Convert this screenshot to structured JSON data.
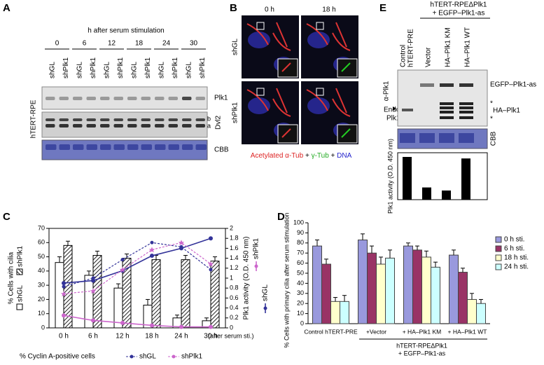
{
  "panels": {
    "A": {
      "letter": "A",
      "header": "h after serum stimulation",
      "times": [
        "0",
        "6",
        "12",
        "18",
        "24",
        "30"
      ],
      "lanes": [
        "shGL",
        "shPlk1"
      ],
      "cell_line": "hTERT-RPE",
      "rows": [
        "Plk1",
        "b",
        "a",
        "Dvl2",
        "CBB"
      ]
    },
    "B": {
      "letter": "B",
      "columns": [
        "0 h",
        "18 h"
      ],
      "rows": [
        "shGL",
        "shPlk1"
      ],
      "caption": [
        "Acetylated α-Tub",
        "+",
        "γ-Tub",
        "+",
        "DNA"
      ]
    },
    "E": {
      "letter": "E",
      "header": [
        "hTERT-RPEΔPlk1",
        "+ EGFP–Plk1-as"
      ],
      "lanes": [
        [
          "Control",
          "hTERT-PRE"
        ],
        [
          "Vector"
        ],
        [
          "HA–Plk1 KM"
        ],
        [
          "HA–Plk1 WT"
        ]
      ],
      "antibody": "α-Plk1",
      "bands": [
        "EGFP–Plk1-as",
        "*",
        "HA–Plk1",
        "*"
      ],
      "endo": [
        "Endo.",
        "Plk1"
      ],
      "stain": "CBB"
    }
  },
  "chart_data": [
    {
      "type": "bar",
      "letter": "C",
      "categories": [
        "0 h",
        "6 h",
        "12 h",
        "18 h",
        "24 h",
        "30 h"
      ],
      "x_note": "(after serum sti.)",
      "ylabel": "% Cells with cilia",
      "y2label": "Plk1 activity (O.D. 450 nm)",
      "xlabel": "% Cyclin A-positive cells",
      "ylim": [
        0,
        70
      ],
      "yticks": [
        0,
        10,
        20,
        30,
        40,
        50,
        60,
        70
      ],
      "y2lim": [
        0,
        2
      ],
      "y2ticks": [
        0,
        0.2,
        0.4,
        0.6,
        0.8,
        1,
        1.2,
        1.4,
        1.6,
        1.8,
        2
      ],
      "series": [
        {
          "name": "shGL",
          "type": "bar",
          "color": "#ffffff",
          "values": [
            46,
            37,
            28,
            16,
            7,
            5
          ],
          "errors": [
            4,
            3,
            3,
            4,
            2,
            2
          ]
        },
        {
          "name": "shPlk1",
          "type": "bar",
          "color": "#333333",
          "hatch": true,
          "values": [
            58,
            51,
            49,
            48,
            48,
            47
          ],
          "errors": [
            3,
            3,
            3,
            3,
            3,
            3
          ]
        },
        {
          "name": "shGL",
          "type": "line",
          "axis": "y2",
          "style": "solid",
          "color": "#333399",
          "values": [
            0.9,
            0.95,
            1.15,
            1.45,
            1.6,
            1.8
          ]
        },
        {
          "name": "shPlk1",
          "type": "line",
          "axis": "y2",
          "style": "solid",
          "color": "#cc66cc",
          "values": [
            0.25,
            0.15,
            0.1,
            0.05,
            0.02,
            0.02
          ]
        },
        {
          "name": "shGL",
          "type": "line",
          "style": "dashed",
          "color": "#333399",
          "values": [
            29,
            35,
            48,
            60,
            57,
            41
          ]
        },
        {
          "name": "shPlk1",
          "type": "line",
          "style": "dashed",
          "color": "#cc66cc",
          "values": [
            24,
            26,
            41,
            55,
            60,
            45
          ]
        }
      ]
    },
    {
      "type": "bar",
      "letter": "D",
      "categories": [
        "Control hTERT-PRE",
        "+Vector",
        "+ HA–Plk1 KM",
        "+ HA–Plk1 WT"
      ],
      "group_label": [
        "hTERT-RPEΔPlk1",
        "+ EGFP–Plk1-as"
      ],
      "ylabel": "% Cells with primary cilia after serum stimulation",
      "ylim": [
        0,
        100
      ],
      "yticks": [
        0,
        10,
        20,
        30,
        40,
        50,
        60,
        70,
        80,
        90,
        100
      ],
      "series": [
        {
          "name": "0 h sti.",
          "color": "#9999dd",
          "values": [
            77,
            83,
            77,
            68
          ],
          "errors": [
            6,
            6,
            3,
            5
          ]
        },
        {
          "name": "6 h sti.",
          "color": "#993366",
          "values": [
            59,
            70,
            73,
            51
          ],
          "errors": [
            5,
            7,
            4,
            4
          ]
        },
        {
          "name": "18 h sti.",
          "color": "#ffffcc",
          "values": [
            22,
            59,
            66,
            24
          ],
          "errors": [
            4,
            7,
            6,
            6
          ]
        },
        {
          "name": "24 h sti.",
          "color": "#ccffff",
          "values": [
            22,
            65,
            56,
            20
          ],
          "errors": [
            6,
            8,
            5,
            4
          ]
        }
      ]
    },
    {
      "type": "activity",
      "ylabel": "Plk1 activity (O.D. 450 nm)",
      "values": [
        2.8,
        0.8,
        0.6,
        2.7
      ],
      "color": "#000000"
    }
  ]
}
